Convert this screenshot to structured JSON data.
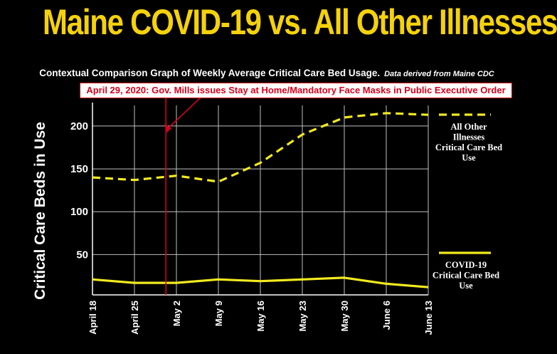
{
  "title": "Maine COVID-19 vs. All Other Illnesses",
  "subtitle": "Contextual Comparison Graph of Weekly Average Critical Care Bed Usage.",
  "subtitle_note": "Data derived from Maine CDC",
  "annotation": "April 29, 2020: Gov. Mills issues Stay at Home/Mandatory Face Masks in Public Executive Order",
  "colors": {
    "title": "#f5d20a",
    "series": "#f2ea1f",
    "annotation": "#d6001c",
    "grid": "#bfbfbf",
    "background": "#000000"
  },
  "chart_data": {
    "type": "line",
    "title": "Maine COVID-19 vs. All Other Illnesses",
    "ylabel": "Critical Care Beds in Use",
    "xlabel": "",
    "categories": [
      "April 18",
      "April 25",
      "May 2",
      "May 9",
      "May 16",
      "May 23",
      "May 30",
      "June 6",
      "June 13"
    ],
    "yticks": [
      50,
      100,
      150,
      200
    ],
    "ylim": [
      3,
      224
    ],
    "grid": true,
    "legend_position": "right",
    "series": [
      {
        "name": "All Other Illnesses Critical Care Bed Use",
        "style": "dashed",
        "values": [
          140,
          137,
          142,
          135,
          157,
          190,
          210,
          215,
          213
        ]
      },
      {
        "name": "COVID-19 Critical Care Bed Use",
        "style": "solid",
        "values": [
          21,
          17,
          17,
          21,
          19,
          21,
          23,
          16,
          12
        ]
      }
    ],
    "vertical_marker": {
      "date": "April 29, 2020",
      "position_between": [
        "April 25",
        "May 2"
      ],
      "fraction": 0.75
    },
    "legend": [
      {
        "lines": [
          "All Other",
          "Illnesses",
          "Critical Care Bed",
          "Use"
        ],
        "series": 0
      },
      {
        "lines": [
          "COVID-19",
          "Critical Care Bed",
          "Use"
        ],
        "series": 1
      }
    ]
  }
}
